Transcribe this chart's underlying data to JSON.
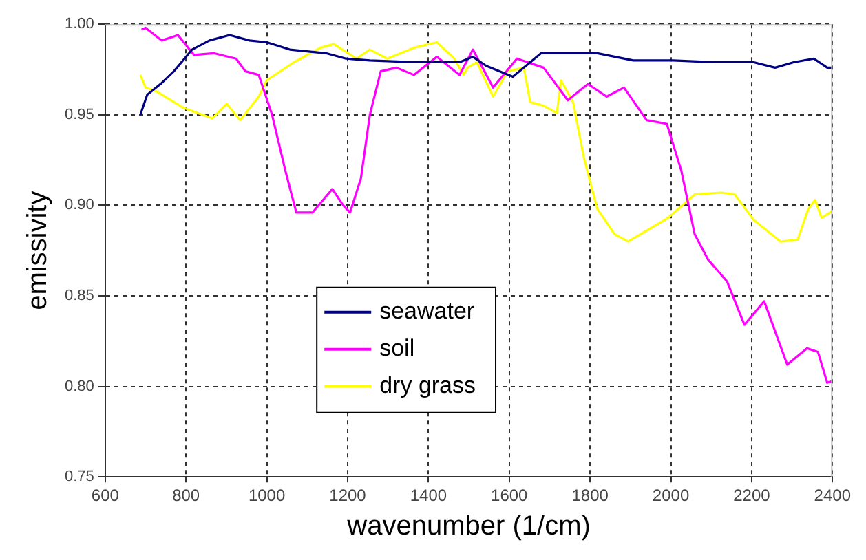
{
  "chart_data": {
    "type": "line",
    "xlabel": "wavenumber (1/cm)",
    "ylabel": "emissivity",
    "xlim": [
      600,
      2400
    ],
    "xticks": [
      600,
      800,
      1000,
      1200,
      1400,
      1600,
      1800,
      2000,
      2200,
      2400
    ],
    "ylim": [
      0.75,
      1.0
    ],
    "yticks": [
      {
        "value": 0.75,
        "label": "0.75"
      },
      {
        "value": 0.8,
        "label": "0.80"
      },
      {
        "value": 0.85,
        "label": "0.85"
      },
      {
        "value": 0.9,
        "label": "0.90"
      },
      {
        "value": 0.95,
        "label": "0.95"
      },
      {
        "value": 1.0,
        "label": "1.00"
      }
    ],
    "grid": true,
    "legend": "bottom left",
    "marker": "none",
    "line_style": "solid",
    "series": [
      {
        "name": "seawater",
        "color": "#000080",
        "x": [
          687,
          704,
          737,
          770,
          815,
          858,
          908,
          957,
          1000,
          1057,
          1146,
          1196,
          1255,
          1364,
          1477,
          1510,
          1543,
          1609,
          1652,
          1679,
          1741,
          1818,
          1907,
          2006,
          2105,
          2205,
          2258,
          2304,
          2354,
          2387,
          2400
        ],
        "values": [
          0.95,
          0.961,
          0.967,
          0.974,
          0.986,
          0.991,
          0.994,
          0.991,
          0.99,
          0.986,
          0.984,
          0.981,
          0.98,
          0.979,
          0.979,
          0.982,
          0.977,
          0.971,
          0.979,
          0.984,
          0.984,
          0.984,
          0.98,
          0.98,
          0.979,
          0.979,
          0.976,
          0.979,
          0.981,
          0.976,
          0.976
        ]
      },
      {
        "name": "soil",
        "color": "#ff00ff",
        "x": [
          690,
          700,
          740,
          780,
          820,
          868,
          924,
          947,
          980,
          1013,
          1046,
          1073,
          1113,
          1162,
          1189,
          1206,
          1233,
          1255,
          1282,
          1321,
          1364,
          1421,
          1477,
          1510,
          1560,
          1619,
          1685,
          1745,
          1795,
          1841,
          1884,
          1940,
          1990,
          2026,
          2059,
          2092,
          2139,
          2182,
          2231,
          2288,
          2337,
          2364,
          2387,
          2400
        ],
        "values": [
          0.997,
          0.998,
          0.991,
          0.994,
          0.983,
          0.984,
          0.981,
          0.974,
          0.972,
          0.95,
          0.919,
          0.896,
          0.896,
          0.909,
          0.9,
          0.896,
          0.915,
          0.95,
          0.974,
          0.976,
          0.972,
          0.982,
          0.972,
          0.986,
          0.965,
          0.981,
          0.976,
          0.958,
          0.967,
          0.96,
          0.965,
          0.947,
          0.945,
          0.919,
          0.884,
          0.87,
          0.858,
          0.834,
          0.847,
          0.812,
          0.821,
          0.819,
          0.802,
          0.803
        ]
      },
      {
        "name": "dry grass",
        "color": "#ffff00",
        "x": [
          687,
          700,
          726,
          792,
          865,
          901,
          934,
          980,
          1000,
          1067,
          1133,
          1166,
          1222,
          1255,
          1298,
          1364,
          1421,
          1464,
          1487,
          1497,
          1520,
          1560,
          1596,
          1636,
          1652,
          1685,
          1718,
          1728,
          1758,
          1785,
          1818,
          1861,
          1894,
          1940,
          1993,
          2059,
          2125,
          2158,
          2205,
          2271,
          2314,
          2340,
          2357,
          2373,
          2400
        ],
        "values": [
          0.972,
          0.965,
          0.963,
          0.954,
          0.948,
          0.956,
          0.947,
          0.96,
          0.969,
          0.979,
          0.987,
          0.989,
          0.981,
          0.986,
          0.981,
          0.987,
          0.99,
          0.981,
          0.972,
          0.976,
          0.979,
          0.96,
          0.974,
          0.976,
          0.957,
          0.955,
          0.951,
          0.969,
          0.957,
          0.926,
          0.898,
          0.884,
          0.88,
          0.886,
          0.893,
          0.906,
          0.907,
          0.906,
          0.892,
          0.88,
          0.881,
          0.898,
          0.903,
          0.893,
          0.897
        ]
      }
    ]
  }
}
